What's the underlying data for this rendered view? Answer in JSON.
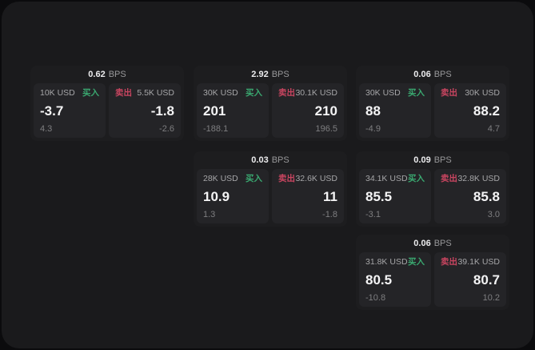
{
  "labels": {
    "bps": "BPS",
    "buy": "买入",
    "sell": "卖出"
  },
  "colors": {
    "buy_green": "#3aa870",
    "sell_red": "#c94560",
    "background": "#1a1a1c",
    "card": "#1d1d1f",
    "panel": "#242427"
  },
  "cards": [
    {
      "bps": "0.62",
      "grid": {
        "col": 1,
        "row": 1
      },
      "buy": {
        "amount": "10K USD",
        "value": "-3.7",
        "sub": "4.3"
      },
      "sell": {
        "amount": "5.5K USD",
        "value": "-1.8",
        "sub": "-2.6"
      }
    },
    {
      "bps": "2.92",
      "grid": {
        "col": 2,
        "row": 1
      },
      "buy": {
        "amount": "30K USD",
        "value": "201",
        "sub": "-188.1"
      },
      "sell": {
        "amount": "30.1K USD",
        "value": "210",
        "sub": "196.5"
      }
    },
    {
      "bps": "0.06",
      "grid": {
        "col": 3,
        "row": 1
      },
      "buy": {
        "amount": "30K USD",
        "value": "88",
        "sub": "-4.9"
      },
      "sell": {
        "amount": "30K USD",
        "value": "88.2",
        "sub": "4.7"
      }
    },
    {
      "bps": "0.03",
      "grid": {
        "col": 2,
        "row": 2
      },
      "buy": {
        "amount": "28K USD",
        "value": "10.9",
        "sub": "1.3"
      },
      "sell": {
        "amount": "32.6K USD",
        "value": "11",
        "sub": "-1.8"
      }
    },
    {
      "bps": "0.09",
      "grid": {
        "col": 3,
        "row": 2
      },
      "buy": {
        "amount": "34.1K USD",
        "value": "85.5",
        "sub": "-3.1"
      },
      "sell": {
        "amount": "32.8K USD",
        "value": "85.8",
        "sub": "3.0"
      }
    },
    {
      "bps": "0.06",
      "grid": {
        "col": 3,
        "row": 3
      },
      "buy": {
        "amount": "31.8K USD",
        "value": "80.5",
        "sub": "-10.8"
      },
      "sell": {
        "amount": "39.1K USD",
        "value": "80.7",
        "sub": "10.2"
      }
    }
  ]
}
